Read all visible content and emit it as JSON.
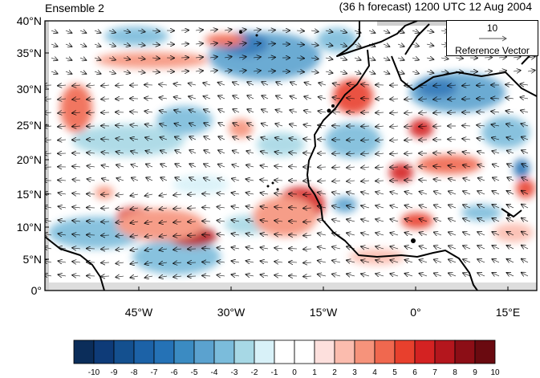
{
  "header": {
    "left_title": "Ensemble 2",
    "right_title": "(36 h forecast) 1200 UTC 12 Aug 2004"
  },
  "map": {
    "lat_labels": [
      "40°N",
      "35°N",
      "30°N",
      "25°N",
      "20°N",
      "15°N",
      "10°N",
      "5°N",
      "0°"
    ],
    "lon_labels": [
      "45°W",
      "30°W",
      "15°W",
      "0°",
      "15°E"
    ],
    "lon_range": [
      -58,
      19
    ],
    "lat_range": [
      0,
      40
    ]
  },
  "reference_vector": {
    "magnitude": "10",
    "label": "Reference Vector"
  },
  "colorbar": {
    "labels": [
      "-10",
      "-9",
      "-8",
      "-7",
      "-6",
      "-5",
      "-4",
      "-3",
      "-2",
      "-1",
      "0",
      "1",
      "2",
      "3",
      "4",
      "5",
      "6",
      "7",
      "8",
      "9",
      "10"
    ],
    "colors": [
      "#0b2d5a",
      "#0e3b78",
      "#14508f",
      "#1c62a7",
      "#2572b6",
      "#3b8bc2",
      "#5ba2cf",
      "#7bbcdb",
      "#a7d8e5",
      "#d8f1f8",
      "#ffffff",
      "#ffffff",
      "#fde0dd",
      "#fbbcae",
      "#f6937b",
      "#f0684f",
      "#e8402d",
      "#d42222",
      "#b4161d",
      "#8c0e16",
      "#6a0a10"
    ]
  }
}
